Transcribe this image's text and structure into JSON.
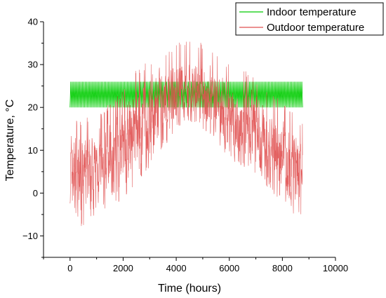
{
  "chart_data": {
    "type": "line",
    "xlabel": "Time (hours)",
    "ylabel": "Temperature, °C",
    "xlim": [
      -1000,
      10000
    ],
    "ylim": [
      -15,
      40
    ],
    "x_ticks": [
      0,
      2000,
      4000,
      6000,
      8000,
      10000
    ],
    "y_ticks": [
      -10,
      0,
      10,
      20,
      30,
      40
    ],
    "grid": false,
    "legend_position": "top-right",
    "series": [
      {
        "name": "Indoor temperature",
        "color": "#00cc00",
        "band": {
          "x": [
            0,
            8760
          ],
          "low": 20,
          "high": 26
        }
      },
      {
        "name": "Outdoor temperature",
        "color": "#e05050",
        "envelope": {
          "x": [
            0,
            400,
            1000,
            1500,
            2000,
            2500,
            3000,
            3500,
            4000,
            4500,
            5000,
            5500,
            6000,
            6500,
            7000,
            7500,
            8000,
            8500,
            8760
          ],
          "mean": [
            5,
            4,
            6,
            8,
            10,
            14,
            17,
            20,
            23,
            24,
            23,
            21,
            18,
            16,
            14,
            10,
            8,
            5,
            4
          ],
          "min": [
            -4,
            -8,
            -5,
            -3,
            -2,
            2,
            6,
            10,
            15,
            16,
            15,
            12,
            8,
            6,
            4,
            0,
            -2,
            -7,
            -6
          ],
          "max": [
            20,
            17,
            19,
            21,
            24,
            29,
            31,
            33,
            35,
            36,
            35,
            33,
            30,
            29,
            27,
            24,
            22,
            18,
            17
          ]
        }
      }
    ]
  }
}
